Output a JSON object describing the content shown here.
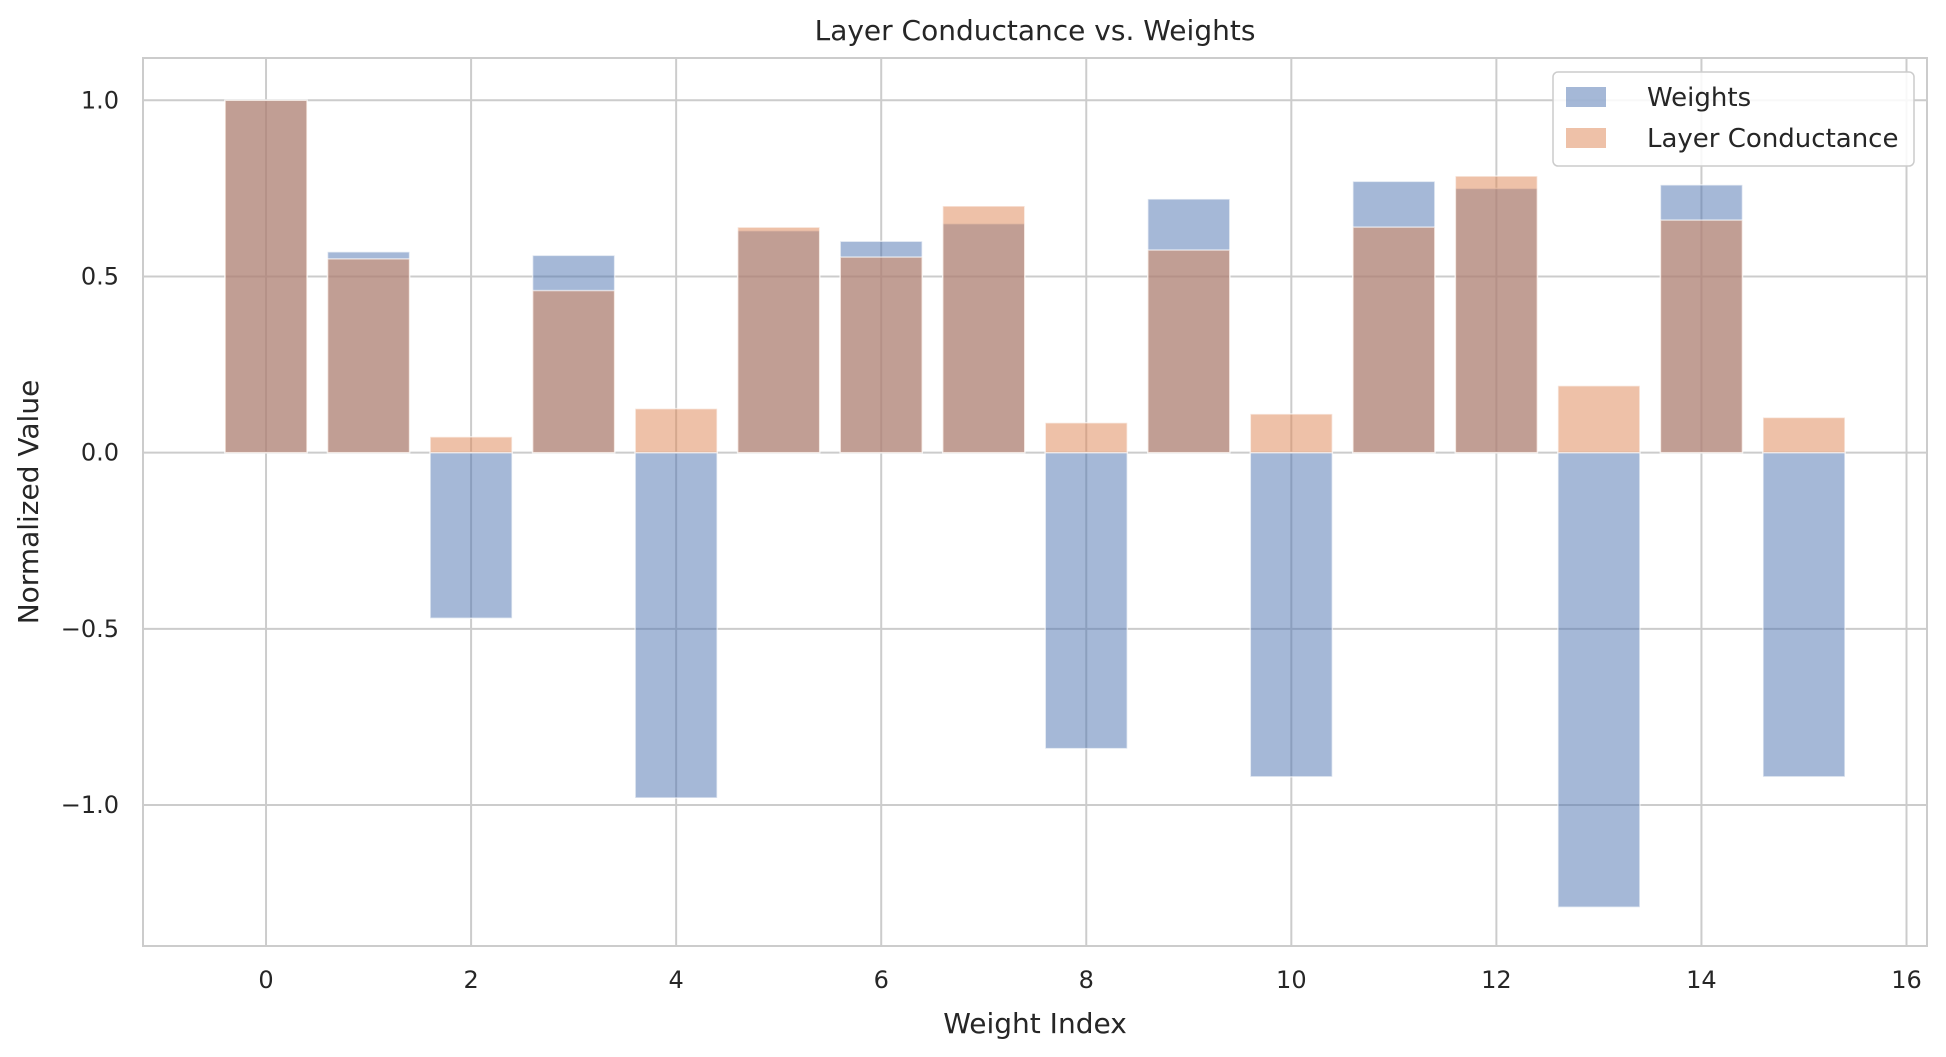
{
  "chart_data": {
    "type": "bar",
    "title": "Layer Conductance vs. Weights",
    "xlabel": "Weight Index",
    "ylabel": "Normalized Value",
    "xlim": [
      -1.2,
      16.2
    ],
    "ylim": [
      -1.4,
      1.12
    ],
    "xticks": [
      0,
      2,
      4,
      6,
      8,
      10,
      12,
      14,
      16
    ],
    "xtick_labels": [
      "0",
      "2",
      "4",
      "6",
      "8",
      "10",
      "12",
      "14",
      "16"
    ],
    "yticks": [
      1.0,
      0.5,
      0.0,
      -0.5,
      -1.0
    ],
    "ytick_labels": [
      "1.0",
      "0.5",
      "0.0",
      "−0.5",
      "−1.0"
    ],
    "grid": true,
    "legend_position": "top-right",
    "x": [
      0,
      1,
      2,
      3,
      4,
      5,
      6,
      7,
      8,
      9,
      10,
      11,
      12,
      13,
      14,
      15
    ],
    "series": [
      {
        "name": "Weights",
        "color": "#4c72b0",
        "alpha": 0.5,
        "values": [
          1.0,
          0.57,
          -0.47,
          0.56,
          -0.98,
          0.63,
          0.6,
          0.65,
          -0.84,
          0.72,
          -0.92,
          0.77,
          0.75,
          -1.29,
          0.76,
          -0.92
        ]
      },
      {
        "name": "Layer Conductance",
        "color": "#dd8452",
        "alpha": 0.5,
        "values": [
          1.0,
          0.55,
          0.045,
          0.46,
          0.125,
          0.64,
          0.555,
          0.7,
          0.085,
          0.575,
          0.11,
          0.64,
          0.785,
          0.19,
          0.66,
          0.1
        ]
      }
    ]
  }
}
